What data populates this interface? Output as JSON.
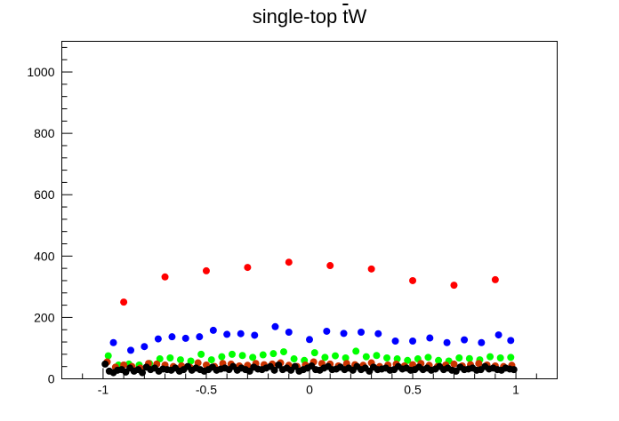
{
  "chart_data": {
    "type": "scatter",
    "title_prefix": "single-top ",
    "title_bar": "t",
    "title_suffix": "W",
    "xlabel": "",
    "ylabel": "",
    "xlim": [
      -1.2,
      1.2
    ],
    "ylim": [
      0,
      1100
    ],
    "x_ticks": [
      "-1",
      "-0.5",
      "0",
      "0.5",
      "1"
    ],
    "x_tick_values": [
      -1,
      -0.5,
      0,
      0.5,
      1
    ],
    "y_ticks": [
      "0",
      "200",
      "400",
      "600",
      "800",
      "1000"
    ],
    "y_tick_values": [
      0,
      200,
      400,
      600,
      800,
      1000
    ],
    "grid": false,
    "legend": "none",
    "series": [
      {
        "color": "#ff0000",
        "x": [
          -0.9,
          -0.7,
          -0.5,
          -0.3,
          -0.1,
          0.1,
          0.3,
          0.5,
          0.7,
          0.9
        ],
        "y": [
          250,
          332,
          352,
          363,
          380,
          369,
          358,
          320,
          305,
          323
        ]
      },
      {
        "color": "#0000ff",
        "x": [
          -0.95,
          -0.866,
          -0.8,
          -0.733,
          -0.666,
          -0.6,
          -0.533,
          -0.466,
          -0.4,
          -0.333,
          -0.266,
          -0.166,
          -0.1,
          0,
          0.0833,
          0.166,
          0.25,
          0.333,
          0.416,
          0.5,
          0.583,
          0.666,
          0.75,
          0.833,
          0.916,
          0.975
        ],
        "y": [
          118,
          93,
          105,
          130,
          137,
          132,
          137,
          158,
          145,
          147,
          142,
          170,
          152,
          128,
          155,
          148,
          152,
          147,
          123,
          123,
          133,
          118,
          127,
          118,
          143,
          125
        ]
      },
      {
        "color": "#00ff00",
        "x": [
          -0.975,
          -0.925,
          -0.875,
          -0.825,
          -0.775,
          -0.725,
          -0.675,
          -0.625,
          -0.575,
          -0.525,
          -0.475,
          -0.425,
          -0.375,
          -0.325,
          -0.275,
          -0.225,
          -0.175,
          -0.125,
          -0.075,
          -0.025,
          0.025,
          0.075,
          0.125,
          0.175,
          0.225,
          0.275,
          0.325,
          0.375,
          0.425,
          0.475,
          0.525,
          0.575,
          0.625,
          0.675,
          0.725,
          0.775,
          0.825,
          0.875,
          0.925,
          0.975
        ],
        "y": [
          75,
          45,
          48,
          45,
          50,
          65,
          68,
          62,
          58,
          80,
          62,
          72,
          80,
          76,
          70,
          78,
          82,
          88,
          65,
          60,
          85,
          70,
          75,
          68,
          90,
          72,
          76,
          68,
          65,
          60,
          65,
          70,
          60,
          58,
          68,
          66,
          62,
          72,
          68,
          70
        ]
      },
      {
        "color": "#cc3300",
        "x": [
          -0.98,
          -0.94,
          -0.9,
          -0.86,
          -0.82,
          -0.78,
          -0.74,
          -0.7,
          -0.66,
          -0.62,
          -0.58,
          -0.54,
          -0.5,
          -0.46,
          -0.42,
          -0.38,
          -0.34,
          -0.3,
          -0.26,
          -0.22,
          -0.18,
          -0.14,
          -0.1,
          -0.06,
          -0.02,
          0.02,
          0.06,
          0.1,
          0.14,
          0.18,
          0.22,
          0.26,
          0.3,
          0.34,
          0.38,
          0.42,
          0.46,
          0.5,
          0.54,
          0.58,
          0.62,
          0.66,
          0.7,
          0.74,
          0.78,
          0.82,
          0.86,
          0.9,
          0.94,
          0.98
        ],
        "y": [
          55,
          38,
          45,
          40,
          35,
          50,
          48,
          45,
          40,
          42,
          38,
          52,
          45,
          40,
          50,
          48,
          42,
          44,
          50,
          46,
          48,
          52,
          44,
          40,
          45,
          55,
          50,
          48,
          42,
          50,
          46,
          44,
          52,
          40,
          45,
          48,
          42,
          46,
          50,
          44,
          40,
          45,
          48,
          42,
          46,
          50,
          45,
          42,
          40,
          44
        ]
      },
      {
        "color": "#000000",
        "x": [
          -0.99,
          -0.97,
          -0.95,
          -0.93,
          -0.91,
          -0.89,
          -0.87,
          -0.85,
          -0.83,
          -0.81,
          -0.79,
          -0.77,
          -0.75,
          -0.73,
          -0.71,
          -0.69,
          -0.67,
          -0.65,
          -0.63,
          -0.61,
          -0.59,
          -0.57,
          -0.55,
          -0.53,
          -0.51,
          -0.49,
          -0.47,
          -0.45,
          -0.43,
          -0.41,
          -0.39,
          -0.37,
          -0.35,
          -0.33,
          -0.31,
          -0.29,
          -0.27,
          -0.25,
          -0.23,
          -0.21,
          -0.19,
          -0.17,
          -0.15,
          -0.13,
          -0.11,
          -0.09,
          -0.07,
          -0.05,
          -0.03,
          -0.01,
          0.01,
          0.03,
          0.05,
          0.07,
          0.09,
          0.11,
          0.13,
          0.15,
          0.17,
          0.19,
          0.21,
          0.23,
          0.25,
          0.27,
          0.29,
          0.31,
          0.33,
          0.35,
          0.37,
          0.39,
          0.41,
          0.43,
          0.45,
          0.47,
          0.49,
          0.51,
          0.53,
          0.55,
          0.57,
          0.59,
          0.61,
          0.63,
          0.65,
          0.67,
          0.69,
          0.71,
          0.73,
          0.75,
          0.77,
          0.79,
          0.81,
          0.83,
          0.85,
          0.87,
          0.89,
          0.91,
          0.93,
          0.95,
          0.97,
          0.99
        ],
        "y": [
          48,
          25,
          20,
          28,
          30,
          22,
          35,
          25,
          30,
          20,
          38,
          30,
          35,
          25,
          32,
          30,
          28,
          35,
          25,
          30,
          40,
          28,
          35,
          30,
          25,
          30,
          38,
          28,
          32,
          35,
          30,
          40,
          28,
          35,
          30,
          25,
          38,
          32,
          30,
          35,
          40,
          28,
          45,
          30,
          35,
          28,
          40,
          25,
          30,
          35,
          42,
          30,
          28,
          35,
          40,
          30,
          32,
          38,
          30,
          35,
          28,
          40,
          30,
          35,
          25,
          38,
          30,
          32,
          35,
          28,
          30,
          40,
          32,
          35,
          28,
          30,
          38,
          30,
          35,
          28,
          32,
          40,
          30,
          35,
          28,
          25,
          38,
          30,
          32,
          35,
          28,
          30,
          40,
          32,
          35,
          30,
          28,
          35,
          32,
          30
        ]
      }
    ]
  }
}
